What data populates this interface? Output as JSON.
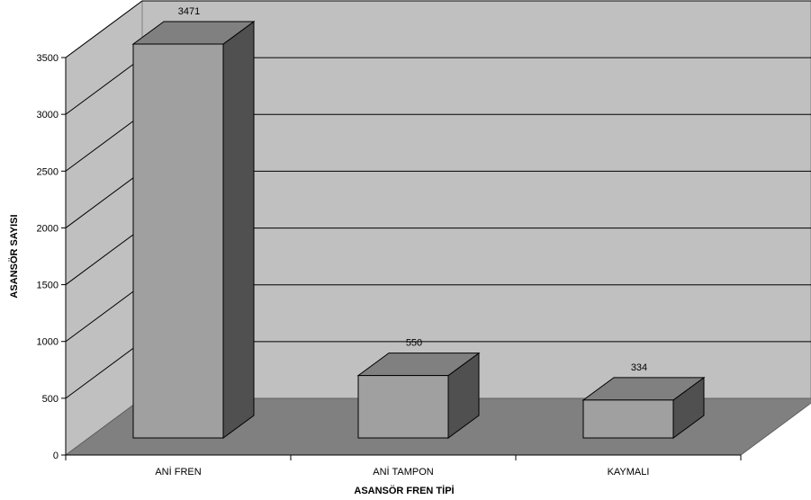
{
  "chart_data": {
    "type": "bar",
    "style": "3d",
    "categories": [
      "ANİ FREN",
      "ANİ TAMPON",
      "KAYMALI"
    ],
    "values": [
      3471,
      550,
      334
    ],
    "data_labels": [
      "3471",
      "550",
      "334"
    ],
    "title": "",
    "xlabel": "ASANSÖR FREN TİPİ",
    "ylabel": "ASANSÖR SAYISI",
    "ylim": [
      0,
      3500
    ],
    "yticks": [
      0,
      500,
      1000,
      1500,
      2000,
      2500,
      3000,
      3500
    ],
    "grid": true,
    "legend": "none",
    "colors": {
      "wall": "#c0c0c0",
      "floor": "#808080",
      "bar_front": "#a0a0a0",
      "bar_top": "#808080",
      "bar_side": "#505050",
      "grid": "#000000"
    }
  }
}
